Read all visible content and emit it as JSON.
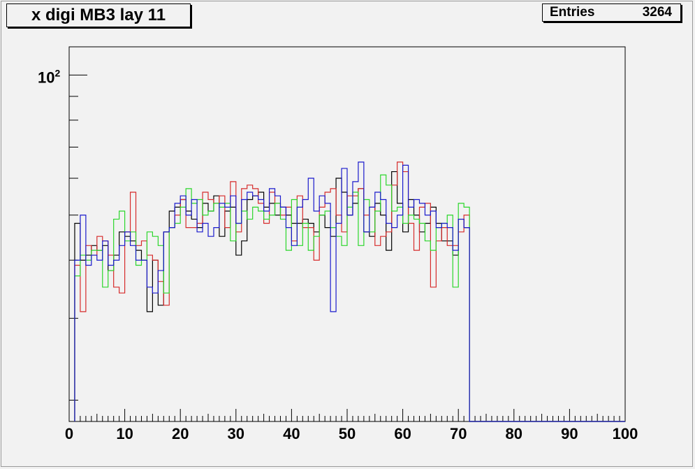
{
  "title": "x digi MB3 lay 11",
  "stats": {
    "entries_label": "Entries",
    "entries_value": "3264"
  },
  "colors": {
    "black": "#000000",
    "red": "#d62b2b",
    "green": "#2bd62b",
    "blue": "#1a1acc",
    "background": "#f2f2f2"
  },
  "chart_data": {
    "type": "histogram",
    "title": "x digi MB3 lay 11",
    "xlim": [
      0,
      100
    ],
    "ylim": [
      18,
      115
    ],
    "ylog": true,
    "grid": false,
    "x_tick_labels": [
      "0",
      "10",
      "20",
      "30",
      "40",
      "50",
      "60",
      "70",
      "80",
      "90",
      "100"
    ],
    "y_tick_label": {
      "base": "10",
      "exp": "2",
      "value": 100
    },
    "bin_edges_start": 1,
    "bin_width": 1,
    "series": [
      {
        "color": "black",
        "values": [
          48,
          40,
          41,
          43,
          42,
          43,
          38,
          41,
          46,
          45,
          44,
          42,
          40,
          31,
          40,
          32,
          46,
          51,
          52,
          54,
          51,
          49,
          47,
          53,
          51,
          55,
          45,
          51,
          52,
          41,
          44,
          54,
          55,
          56,
          52,
          53,
          50,
          52,
          50,
          48,
          48,
          49,
          48,
          46,
          50,
          47,
          45,
          60,
          56,
          50,
          53,
          57,
          46,
          45,
          53,
          50,
          42,
          62,
          53,
          46,
          54,
          50,
          46,
          48,
          52,
          48,
          44,
          44,
          41,
          49,
          47
        ]
      },
      {
        "color": "red",
        "values": [
          39,
          31,
          43,
          41,
          45,
          44,
          41,
          35,
          34,
          46,
          56,
          43,
          44,
          41,
          40,
          36,
          32,
          47,
          50,
          54,
          47,
          47,
          48,
          56,
          54,
          53,
          55,
          47,
          59,
          46,
          57,
          58,
          57,
          53,
          48,
          56,
          53,
          50,
          52,
          44,
          55,
          47,
          47,
          40,
          52,
          56,
          57,
          50,
          46,
          55,
          55,
          57,
          50,
          52,
          43,
          45,
          46,
          58,
          65,
          62,
          48,
          42,
          52,
          53,
          35,
          44,
          47,
          43,
          43,
          46,
          50
        ]
      },
      {
        "color": "green",
        "values": [
          37,
          41,
          40,
          42,
          42,
          35,
          38,
          49,
          51,
          44,
          46,
          39,
          40,
          46,
          45,
          43,
          34,
          47,
          48,
          52,
          57,
          53,
          54,
          50,
          51,
          53,
          52,
          53,
          44,
          48,
          51,
          49,
          52,
          51,
          49,
          50,
          53,
          49,
          42,
          54,
          43,
          48,
          42,
          45,
          50,
          51,
          47,
          45,
          43,
          52,
          56,
          43,
          54,
          46,
          51,
          61,
          58,
          51,
          52,
          48,
          50,
          49,
          48,
          44,
          42,
          47,
          48,
          50,
          35,
          53,
          52
        ]
      },
      {
        "color": "blue",
        "values": [
          40,
          50,
          39,
          41,
          40,
          44,
          39,
          40,
          43,
          46,
          43,
          40,
          40,
          35,
          34,
          38,
          46,
          47,
          53,
          55,
          50,
          54,
          46,
          48,
          45,
          47,
          53,
          52,
          55,
          48,
          54,
          56,
          55,
          54,
          51,
          57,
          55,
          52,
          47,
          43,
          52,
          54,
          60,
          51,
          55,
          53,
          31,
          48,
          63,
          50,
          59,
          65,
          46,
          52,
          56,
          54,
          48,
          47,
          50,
          64,
          52,
          54,
          53,
          50,
          51,
          47,
          48,
          47,
          42,
          49,
          47
        ]
      }
    ]
  }
}
